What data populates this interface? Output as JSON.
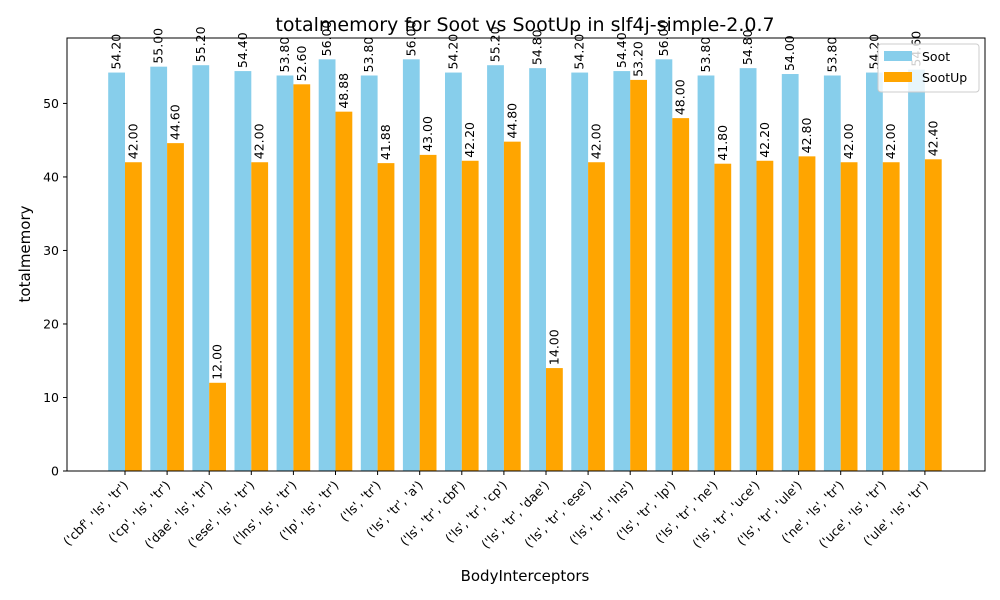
{
  "chart_data": {
    "type": "bar",
    "title": "totalmemory for Soot vs SootUp in slf4j-simple-2.0.7",
    "xlabel": "BodyInterceptors",
    "ylabel": "totalmemory",
    "ylim": [
      0,
      58.9
    ],
    "yticks": [
      0,
      10,
      20,
      30,
      40,
      50
    ],
    "grid": false,
    "legend_position": "top-right",
    "categories": [
      "('cbf', 'ls', 'tr')",
      "('cp', 'ls', 'tr')",
      "('dae', 'ls', 'tr')",
      "('ese', 'ls', 'tr')",
      "('lns', 'ls', 'tr')",
      "('lp', 'ls', 'tr')",
      "('ls', 'tr')",
      "('ls', 'tr', 'a')",
      "('ls', 'tr', 'cbf')",
      "('ls', 'tr', 'cp')",
      "('ls', 'tr', 'dae')",
      "('ls', 'tr', 'ese')",
      "('ls', 'tr', 'lns')",
      "('ls', 'tr', 'lp')",
      "('ls', 'tr', 'ne')",
      "('ls', 'tr', 'uce')",
      "('ls', 'tr', 'ule')",
      "('ne', 'ls', 'tr')",
      "('uce', 'ls', 'tr')",
      "('ule', 'ls', 'tr')"
    ],
    "series": [
      {
        "name": "Soot",
        "color": "#87ceeb",
        "values": [
          54.2,
          55.0,
          55.2,
          54.4,
          53.8,
          56.0,
          53.8,
          56.0,
          54.2,
          55.2,
          54.8,
          54.2,
          54.4,
          56.0,
          53.8,
          54.8,
          54.0,
          53.8,
          54.2,
          54.6
        ]
      },
      {
        "name": "SootUp",
        "color": "#ffa500",
        "values": [
          42.0,
          44.6,
          12.0,
          42.0,
          52.6,
          48.88,
          41.88,
          43.0,
          42.2,
          44.8,
          14.0,
          42.0,
          53.2,
          48.0,
          41.8,
          42.2,
          42.8,
          42.0,
          42.0,
          42.4
        ]
      }
    ]
  }
}
